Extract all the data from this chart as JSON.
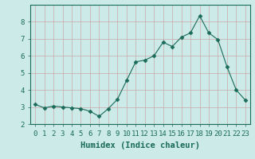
{
  "x": [
    0,
    1,
    2,
    3,
    4,
    5,
    6,
    7,
    8,
    9,
    10,
    11,
    12,
    13,
    14,
    15,
    16,
    17,
    18,
    19,
    20,
    21,
    22,
    23
  ],
  "y": [
    3.15,
    2.95,
    3.05,
    3.0,
    2.95,
    2.9,
    2.75,
    2.45,
    2.9,
    3.45,
    4.55,
    5.65,
    5.75,
    6.0,
    6.8,
    6.55,
    7.1,
    7.35,
    8.35,
    7.35,
    6.95,
    5.35,
    4.0,
    3.4
  ],
  "xlabel": "Humidex (Indice chaleur)",
  "ylim": [
    2.0,
    9.0
  ],
  "xlim": [
    -0.5,
    23.5
  ],
  "yticks": [
    2,
    3,
    4,
    5,
    6,
    7,
    8
  ],
  "xtick_labels": [
    "0",
    "1",
    "2",
    "3",
    "4",
    "5",
    "6",
    "7",
    "8",
    "9",
    "10",
    "11",
    "12",
    "13",
    "14",
    "15",
    "16",
    "17",
    "18",
    "19",
    "20",
    "21",
    "22",
    "23"
  ],
  "line_color": "#1a6b5a",
  "marker": "D",
  "marker_size": 2.5,
  "background_color": "#cceae8",
  "grid_color": "#c8a8a8",
  "xlabel_fontsize": 7.5,
  "tick_fontsize": 6.5
}
